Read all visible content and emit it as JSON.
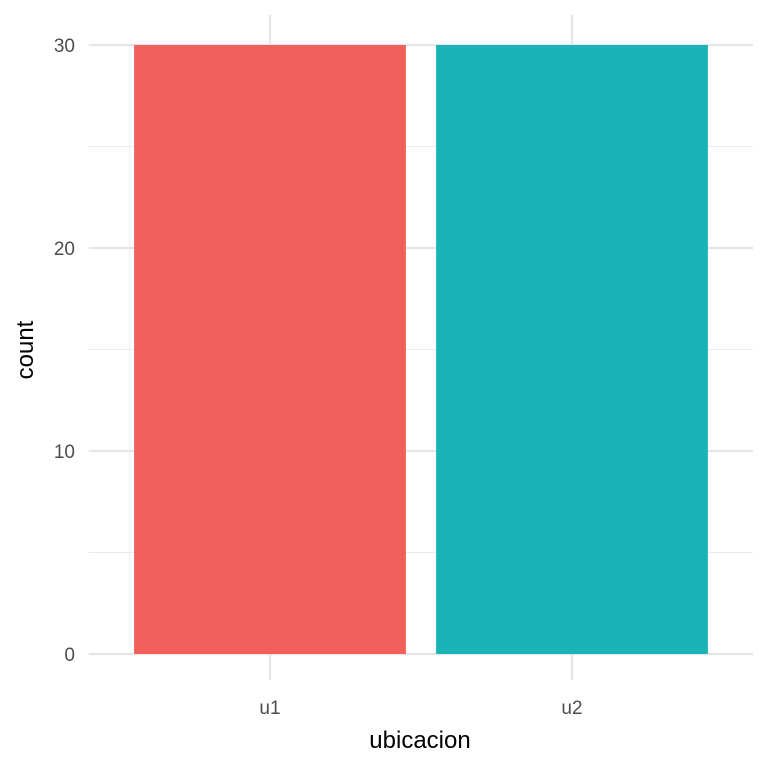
{
  "chart_data": {
    "type": "bar",
    "categories": [
      "u1",
      "u2"
    ],
    "values": [
      30,
      30
    ],
    "colors": [
      "#F8766D",
      "#00BFC4"
    ],
    "bar_colors_rendered": [
      "#F35F5A",
      "#1AB3B7"
    ],
    "title": "",
    "xlabel": "ubicacion",
    "ylabel": "count",
    "ylim": [
      0,
      30
    ],
    "yticks": [
      "0",
      "10",
      "20",
      "30"
    ],
    "grid": true,
    "legend": "none"
  }
}
